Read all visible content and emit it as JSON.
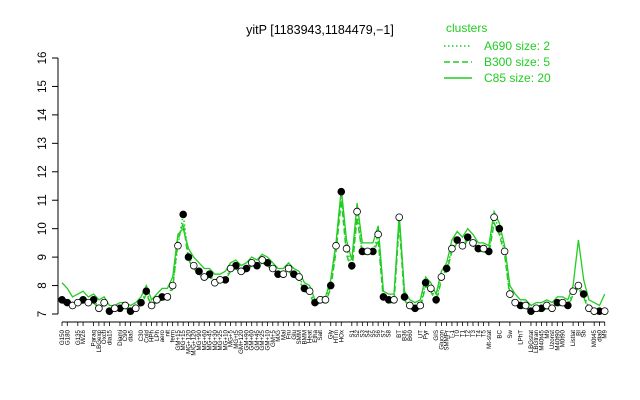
{
  "chart_data": {
    "type": "line",
    "title": "yitP [1183943,1184479,−1]",
    "xlabel": "",
    "ylabel": "",
    "ylim": [
      7,
      16
    ],
    "yticks": [
      7,
      8,
      9,
      10,
      11,
      12,
      13,
      14,
      15,
      16
    ],
    "xlim": [
      0,
      104
    ],
    "colors": {
      "line": "#22cc22",
      "point_fill": "#000000",
      "point_open": "#ffffff",
      "axis": "#000000"
    },
    "legend": {
      "title": "clusters",
      "placement": "top-right",
      "items": [
        {
          "label": "A690 size: 2",
          "style": "dotted"
        },
        {
          "label": "B300 size: 5",
          "style": "dashed"
        },
        {
          "label": "C85 size: 20",
          "style": "solid"
        }
      ]
    },
    "x_tick_labels": [
      {
        "x": 0,
        "label": "G150"
      },
      {
        "x": 1,
        "label": "G180"
      },
      {
        "x": 3,
        "label": "G135"
      },
      {
        "x": 4,
        "label": "M/Z6"
      },
      {
        "x": 6,
        "label": "Paraq"
      },
      {
        "x": 7,
        "label": "LBGexp"
      },
      {
        "x": 8,
        "label": "Oxctl"
      },
      {
        "x": 9,
        "label": "dia15"
      },
      {
        "x": 11,
        "label": "Diami"
      },
      {
        "x": 12,
        "label": "C90"
      },
      {
        "x": 13,
        "label": "dia5"
      },
      {
        "x": 15,
        "label": "C30"
      },
      {
        "x": 16,
        "label": "Cold"
      },
      {
        "x": 17,
        "label": "HPh"
      },
      {
        "x": 18,
        "label": "LPh"
      },
      {
        "x": 19,
        "label": "aero"
      },
      {
        "x": 20,
        "label": "nit"
      },
      {
        "x": 21,
        "label": "ferm"
      },
      {
        "x": 22,
        "label": "GM+15"
      },
      {
        "x": 23,
        "label": "MG+15"
      },
      {
        "x": 24,
        "label": "MG+120"
      },
      {
        "x": 25,
        "label": "M/G+120"
      },
      {
        "x": 26,
        "label": "MG+90"
      },
      {
        "x": 27,
        "label": "MG+60"
      },
      {
        "x": 28,
        "label": "MG+45"
      },
      {
        "x": 29,
        "label": "MG+30"
      },
      {
        "x": 30,
        "label": "MG+25"
      },
      {
        "x": 31,
        "label": "MG+10"
      },
      {
        "x": 32,
        "label": "MG+5"
      },
      {
        "x": 33,
        "label": "MG+t5"
      },
      {
        "x": 34,
        "label": "GM+120"
      },
      {
        "x": 35,
        "label": "GM+90"
      },
      {
        "x": 36,
        "label": "GM+60"
      },
      {
        "x": 37,
        "label": "GM+45"
      },
      {
        "x": 38,
        "label": "GM+25"
      },
      {
        "x": 39,
        "label": "GM+10"
      },
      {
        "x": 40,
        "label": "GM+5"
      },
      {
        "x": 41,
        "label": "M/G"
      },
      {
        "x": 42,
        "label": "Mal"
      },
      {
        "x": 43,
        "label": "Fru"
      },
      {
        "x": 44,
        "label": "Glu"
      },
      {
        "x": 45,
        "label": "SMM"
      },
      {
        "x": 46,
        "label": "BMM"
      },
      {
        "x": 47,
        "label": "Heat"
      },
      {
        "x": 48,
        "label": "Etha"
      },
      {
        "x": 49,
        "label": "Salt"
      },
      {
        "x": 51,
        "label": "Gly"
      },
      {
        "x": 52,
        "label": "HTm"
      },
      {
        "x": 53,
        "label": "HOx"
      },
      {
        "x": 55,
        "label": "S1"
      },
      {
        "x": 56,
        "label": "S2"
      },
      {
        "x": 57,
        "label": "S3"
      },
      {
        "x": 58,
        "label": "S4"
      },
      {
        "x": 59,
        "label": "S5"
      },
      {
        "x": 60,
        "label": "S6"
      },
      {
        "x": 61,
        "label": "S7"
      },
      {
        "x": 62,
        "label": "S8"
      },
      {
        "x": 64,
        "label": "BT"
      },
      {
        "x": 65,
        "label": "B36"
      },
      {
        "x": 66,
        "label": "B60"
      },
      {
        "x": 68,
        "label": "UT"
      },
      {
        "x": 69,
        "label": "Pyr"
      },
      {
        "x": 71,
        "label": "GIS"
      },
      {
        "x": 72,
        "label": "Glucon"
      },
      {
        "x": 73,
        "label": "SMMPr"
      },
      {
        "x": 74,
        "label": "T-1"
      },
      {
        "x": 75,
        "label": "T0"
      },
      {
        "x": 76,
        "label": "T1"
      },
      {
        "x": 77,
        "label": "T2"
      },
      {
        "x": 78,
        "label": "T3"
      },
      {
        "x": 79,
        "label": "T4"
      },
      {
        "x": 80,
        "label": "T5"
      },
      {
        "x": 81,
        "label": "Mt-stat"
      },
      {
        "x": 83,
        "label": "BC"
      },
      {
        "x": 85,
        "label": "Sw"
      },
      {
        "x": 87,
        "label": "LPhT"
      },
      {
        "x": 89,
        "label": "LBGstat"
      },
      {
        "x": 90,
        "label": "LBGtran"
      },
      {
        "x": 91,
        "label": "M40t45"
      },
      {
        "x": 92,
        "label": "M9"
      },
      {
        "x": 93,
        "label": "Uzonst"
      },
      {
        "x": 94,
        "label": "M40t90"
      },
      {
        "x": 95,
        "label": "M0t90"
      },
      {
        "x": 97,
        "label": "Listlat"
      },
      {
        "x": 98,
        "label": "BI"
      },
      {
        "x": 99,
        "label": "Sb"
      },
      {
        "x": 101,
        "label": "M0t45"
      },
      {
        "x": 102,
        "label": "dia0"
      },
      {
        "x": 103,
        "label": "M9"
      }
    ],
    "series": [
      {
        "style": "dotted",
        "x": [
          0,
          1,
          2,
          3,
          4,
          5,
          6,
          7,
          8,
          9,
          10,
          11,
          12,
          13,
          14,
          15,
          16,
          17,
          18,
          19,
          20,
          21,
          22,
          23,
          24,
          25,
          26,
          27,
          28,
          29,
          30,
          31,
          32,
          33,
          34,
          35,
          36,
          37,
          38,
          39,
          40,
          41,
          42,
          43,
          44,
          45,
          46,
          47,
          48,
          49,
          50,
          51,
          52,
          53,
          54,
          55,
          56,
          57,
          58,
          59,
          60,
          61,
          62,
          63,
          64,
          65,
          66,
          67,
          68,
          69,
          70,
          71,
          72,
          73,
          74,
          75,
          76,
          77,
          78,
          79,
          80,
          81,
          82,
          83,
          84,
          85,
          86,
          87,
          88,
          89,
          90,
          91,
          92,
          93,
          94,
          95,
          96,
          97,
          98,
          99,
          100,
          101,
          102,
          103
        ],
        "y": [
          7.5,
          7.4,
          7.3,
          7.4,
          7.5,
          7.4,
          7.5,
          7.2,
          7.4,
          7.1,
          7.2,
          7.2,
          7.3,
          7.1,
          7.2,
          7.4,
          7.8,
          7.3,
          7.5,
          7.6,
          7.6,
          8,
          9.4,
          10.5,
          9,
          8.7,
          8.5,
          8.3,
          8.4,
          8.1,
          8.2,
          8.2,
          8.6,
          8.7,
          8.5,
          8.6,
          8.8,
          8.7,
          8.9,
          8.8,
          8.6,
          8.4,
          8.4,
          8.6,
          8.4,
          8.3,
          7.9,
          7.8,
          7.4,
          7.5,
          7.5,
          8,
          9.4,
          11.3,
          9.3,
          8.7,
          10.6,
          9.2,
          9.2,
          9.2,
          9.8,
          7.6,
          7.5,
          7.5,
          10.4,
          7.6,
          7.3,
          7.2,
          7.3,
          8.1,
          7.9,
          7.5,
          8.3,
          8.6,
          9.3,
          9.6,
          9.4,
          9.7,
          9.5,
          9.3,
          9.3,
          9.2,
          10.4,
          10,
          9.2,
          7.7,
          7.4,
          7.3,
          7.3,
          7.1,
          7.2,
          7.2,
          7.3,
          7.2,
          7.4,
          7.4,
          7.3,
          7.8,
          8,
          7.7,
          7.2,
          7.1,
          7.1,
          7.1
        ],
        "points_filled": [
          0,
          1,
          4,
          6,
          9,
          11,
          13,
          15,
          16,
          19,
          23,
          24,
          26,
          28,
          31,
          33,
          35,
          37,
          39,
          41,
          44,
          46,
          48,
          51,
          53,
          55,
          57,
          59,
          61,
          62,
          65,
          67,
          69,
          71,
          73,
          75,
          77,
          79,
          81,
          83,
          87,
          89,
          91,
          94,
          96,
          99,
          102
        ],
        "points_open": [
          2,
          3,
          5,
          7,
          8,
          10,
          12,
          14,
          17,
          18,
          20,
          21,
          22,
          25,
          27,
          29,
          30,
          32,
          34,
          36,
          38,
          40,
          42,
          43,
          45,
          47,
          49,
          50,
          52,
          54,
          56,
          58,
          60,
          63,
          64,
          66,
          68,
          70,
          72,
          74,
          76,
          78,
          80,
          82,
          84,
          85,
          86,
          88,
          90,
          92,
          93,
          95,
          97,
          98,
          100,
          101,
          103
        ]
      },
      {
        "style": "dashed",
        "x": [
          0,
          1,
          2,
          3,
          4,
          5,
          6,
          7,
          8,
          9,
          10,
          11,
          12,
          13,
          14,
          15,
          16,
          17,
          18,
          19,
          20,
          21,
          22,
          23,
          24,
          25,
          26,
          27,
          28,
          29,
          30,
          31,
          32,
          33,
          34,
          35,
          36,
          37,
          38,
          39,
          40,
          41,
          42,
          43,
          44,
          45,
          46,
          47,
          48,
          49,
          50,
          51,
          52,
          53,
          54,
          55,
          56,
          57,
          58,
          59,
          60,
          61,
          62,
          63,
          64,
          65,
          66,
          67,
          68,
          69,
          70,
          71,
          72,
          73,
          74,
          75,
          76,
          77,
          78,
          79,
          80,
          81,
          82,
          83,
          84,
          85,
          86,
          87,
          88,
          89,
          90,
          91,
          92,
          93,
          94,
          95,
          96,
          97,
          98,
          99,
          100,
          101,
          102,
          103
        ],
        "y": [
          7.4,
          7.3,
          7.2,
          7.3,
          7.4,
          7.3,
          7.4,
          7.2,
          7.3,
          7.1,
          7.1,
          7.2,
          7.2,
          7.1,
          7.2,
          7.3,
          7.7,
          7.3,
          7.4,
          7.5,
          7.5,
          7.9,
          9.6,
          10.2,
          8.9,
          8.6,
          8.4,
          8.2,
          8.3,
          8.1,
          8.1,
          8.2,
          8.5,
          8.6,
          8.4,
          8.5,
          8.7,
          8.6,
          8.8,
          8.7,
          8.5,
          8.3,
          8.3,
          8.5,
          8.3,
          8.2,
          7.8,
          7.7,
          7.3,
          7.4,
          7.4,
          7.9,
          9.2,
          11.0,
          9.1,
          8.5,
          10.4,
          9.1,
          9.1,
          9.1,
          9.6,
          7.5,
          7.4,
          7.4,
          10.2,
          7.5,
          7.2,
          7.1,
          7.2,
          8.0,
          7.8,
          7.4,
          8.2,
          8.5,
          9.2,
          9.5,
          9.3,
          9.6,
          9.4,
          9.2,
          9.2,
          9.1,
          10.2,
          9.8,
          9.1,
          7.6,
          7.3,
          7.2,
          7.2,
          7.1,
          7.1,
          7.1,
          7.2,
          7.1,
          7.3,
          7.3,
          7.2,
          7.7,
          7.9,
          7.6,
          7.1,
          7.1,
          7.1,
          7.1
        ]
      },
      {
        "style": "solid",
        "x": [
          0,
          1,
          2,
          3,
          4,
          5,
          6,
          7,
          8,
          9,
          10,
          11,
          12,
          13,
          14,
          15,
          16,
          17,
          18,
          19,
          20,
          21,
          22,
          23,
          24,
          25,
          26,
          27,
          28,
          29,
          30,
          31,
          32,
          33,
          34,
          35,
          36,
          37,
          38,
          39,
          40,
          41,
          42,
          43,
          44,
          45,
          46,
          47,
          48,
          49,
          50,
          51,
          52,
          53,
          54,
          55,
          56,
          57,
          58,
          59,
          60,
          61,
          62,
          63,
          64,
          65,
          66,
          67,
          68,
          69,
          70,
          71,
          72,
          73,
          74,
          75,
          76,
          77,
          78,
          79,
          80,
          81,
          82,
          83,
          84,
          85,
          86,
          87,
          88,
          89,
          90,
          91,
          92,
          93,
          94,
          95,
          96,
          97,
          98,
          99,
          100,
          101,
          102,
          103
        ],
        "y": [
          8.1,
          7.9,
          7.6,
          7.7,
          7.8,
          7.6,
          7.7,
          7.5,
          7.6,
          7.3,
          7.3,
          7.4,
          7.4,
          7.3,
          7.4,
          7.6,
          8.0,
          7.5,
          7.7,
          7.9,
          7.9,
          8.3,
          9.8,
          10.0,
          9.3,
          9.0,
          8.8,
          8.6,
          8.6,
          8.4,
          8.4,
          8.5,
          8.8,
          8.9,
          8.7,
          8.8,
          9.0,
          8.9,
          9.1,
          9.0,
          8.8,
          8.6,
          8.6,
          8.8,
          8.6,
          8.5,
          8.1,
          8.0,
          7.5,
          7.6,
          7.6,
          8.2,
          9.5,
          11.4,
          9.6,
          8.9,
          10.9,
          9.5,
          9.5,
          9.5,
          10.1,
          7.8,
          7.7,
          7.7,
          10.5,
          7.8,
          7.5,
          7.4,
          7.5,
          8.3,
          8.1,
          7.7,
          8.5,
          8.8,
          9.6,
          9.9,
          9.7,
          10.0,
          9.8,
          9.5,
          9.5,
          9.4,
          10.6,
          10.2,
          9.4,
          8.0,
          7.7,
          7.5,
          7.5,
          7.3,
          7.4,
          7.4,
          7.5,
          7.4,
          7.6,
          7.6,
          7.5,
          8.0,
          9.6,
          8.2,
          7.5,
          7.4,
          7.3,
          7.7
        ]
      }
    ]
  }
}
